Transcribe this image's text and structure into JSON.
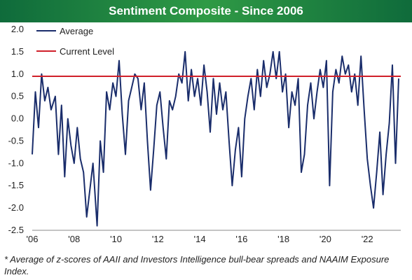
{
  "chart_data": {
    "type": "line",
    "title": "Sentiment Composite - Since 2006",
    "footnote": "* Average of z-scores of AAII and Investors Intelligence bull-bear spreads and NAAIM Exposure Index.",
    "xlabel": "",
    "ylabel": "",
    "xlim": [
      2006.0,
      2023.6
    ],
    "ylim": [
      -2.5,
      2.0
    ],
    "x_tick_labels": [
      "'06",
      "'08",
      "'10",
      "'12",
      "'14",
      "'16",
      "'18",
      "'20",
      "'22"
    ],
    "y_tick_labels": [
      "2.0",
      "1.5",
      "1.0",
      "0.5",
      "0.0",
      "-0.5",
      "-1.0",
      "-1.5",
      "-2.0",
      "-2.5"
    ],
    "grid": false,
    "legend_position": "top-left",
    "series": [
      {
        "name": "Average",
        "color": "#1a2d6b",
        "x": [
          2006.0,
          2006.15,
          2006.3,
          2006.45,
          2006.6,
          2006.75,
          2006.9,
          2007.1,
          2007.25,
          2007.4,
          2007.55,
          2007.7,
          2007.85,
          2008.0,
          2008.15,
          2008.3,
          2008.45,
          2008.6,
          2008.75,
          2008.9,
          2009.1,
          2009.25,
          2009.4,
          2009.55,
          2009.7,
          2009.85,
          2010.0,
          2010.15,
          2010.3,
          2010.45,
          2010.6,
          2010.75,
          2010.9,
          2011.05,
          2011.2,
          2011.35,
          2011.5,
          2011.65,
          2011.8,
          2011.95,
          2012.1,
          2012.25,
          2012.4,
          2012.55,
          2012.7,
          2012.85,
          2013.0,
          2013.15,
          2013.3,
          2013.45,
          2013.6,
          2013.75,
          2013.9,
          2014.05,
          2014.2,
          2014.35,
          2014.5,
          2014.65,
          2014.8,
          2014.95,
          2015.1,
          2015.25,
          2015.4,
          2015.55,
          2015.7,
          2015.85,
          2016.0,
          2016.15,
          2016.3,
          2016.45,
          2016.6,
          2016.75,
          2016.9,
          2017.05,
          2017.2,
          2017.35,
          2017.5,
          2017.65,
          2017.8,
          2017.95,
          2018.1,
          2018.25,
          2018.4,
          2018.55,
          2018.7,
          2018.85,
          2019.0,
          2019.15,
          2019.3,
          2019.45,
          2019.6,
          2019.75,
          2019.9,
          2020.05,
          2020.2,
          2020.35,
          2020.5,
          2020.65,
          2020.8,
          2020.95,
          2021.1,
          2021.25,
          2021.4,
          2021.55,
          2021.7,
          2021.85,
          2022.0,
          2022.15,
          2022.3,
          2022.45,
          2022.6,
          2022.75,
          2022.9,
          2023.05,
          2023.2,
          2023.35,
          2023.5
        ],
        "values": [
          -0.8,
          0.6,
          -0.2,
          1.0,
          0.4,
          0.7,
          0.2,
          0.5,
          -0.8,
          0.3,
          -1.3,
          0.0,
          -0.6,
          -1.0,
          -0.2,
          -0.9,
          -1.2,
          -2.2,
          -1.6,
          -1.0,
          -2.4,
          -0.5,
          -1.2,
          0.6,
          0.2,
          0.8,
          0.5,
          1.3,
          0.1,
          -0.8,
          0.4,
          0.7,
          1.0,
          0.9,
          0.2,
          0.8,
          -0.5,
          -1.6,
          -0.7,
          0.3,
          0.6,
          -0.2,
          -0.9,
          0.4,
          0.2,
          0.5,
          1.0,
          0.8,
          1.5,
          0.4,
          1.1,
          0.5,
          0.9,
          0.3,
          1.2,
          0.6,
          -0.3,
          0.9,
          0.1,
          0.8,
          0.2,
          0.6,
          -0.5,
          -1.5,
          -0.7,
          -0.2,
          -1.3,
          0.0,
          0.5,
          0.9,
          0.2,
          1.1,
          0.5,
          1.3,
          0.7,
          1.0,
          1.5,
          0.9,
          1.5,
          0.6,
          1.0,
          -0.2,
          0.6,
          0.3,
          0.9,
          -1.2,
          -0.8,
          0.3,
          0.8,
          0.0,
          0.6,
          1.1,
          0.7,
          1.3,
          -1.5,
          0.6,
          1.1,
          0.8,
          1.4,
          1.0,
          1.2,
          0.6,
          1.0,
          0.3,
          1.4,
          0.2,
          -0.9,
          -1.5,
          -2.0,
          -1.2,
          -0.3,
          -1.7,
          -0.8,
          -0.1,
          1.2,
          -1.0,
          0.9
        ]
      },
      {
        "name": "Current Level",
        "color": "#d0202a",
        "constant": 0.95
      }
    ]
  }
}
